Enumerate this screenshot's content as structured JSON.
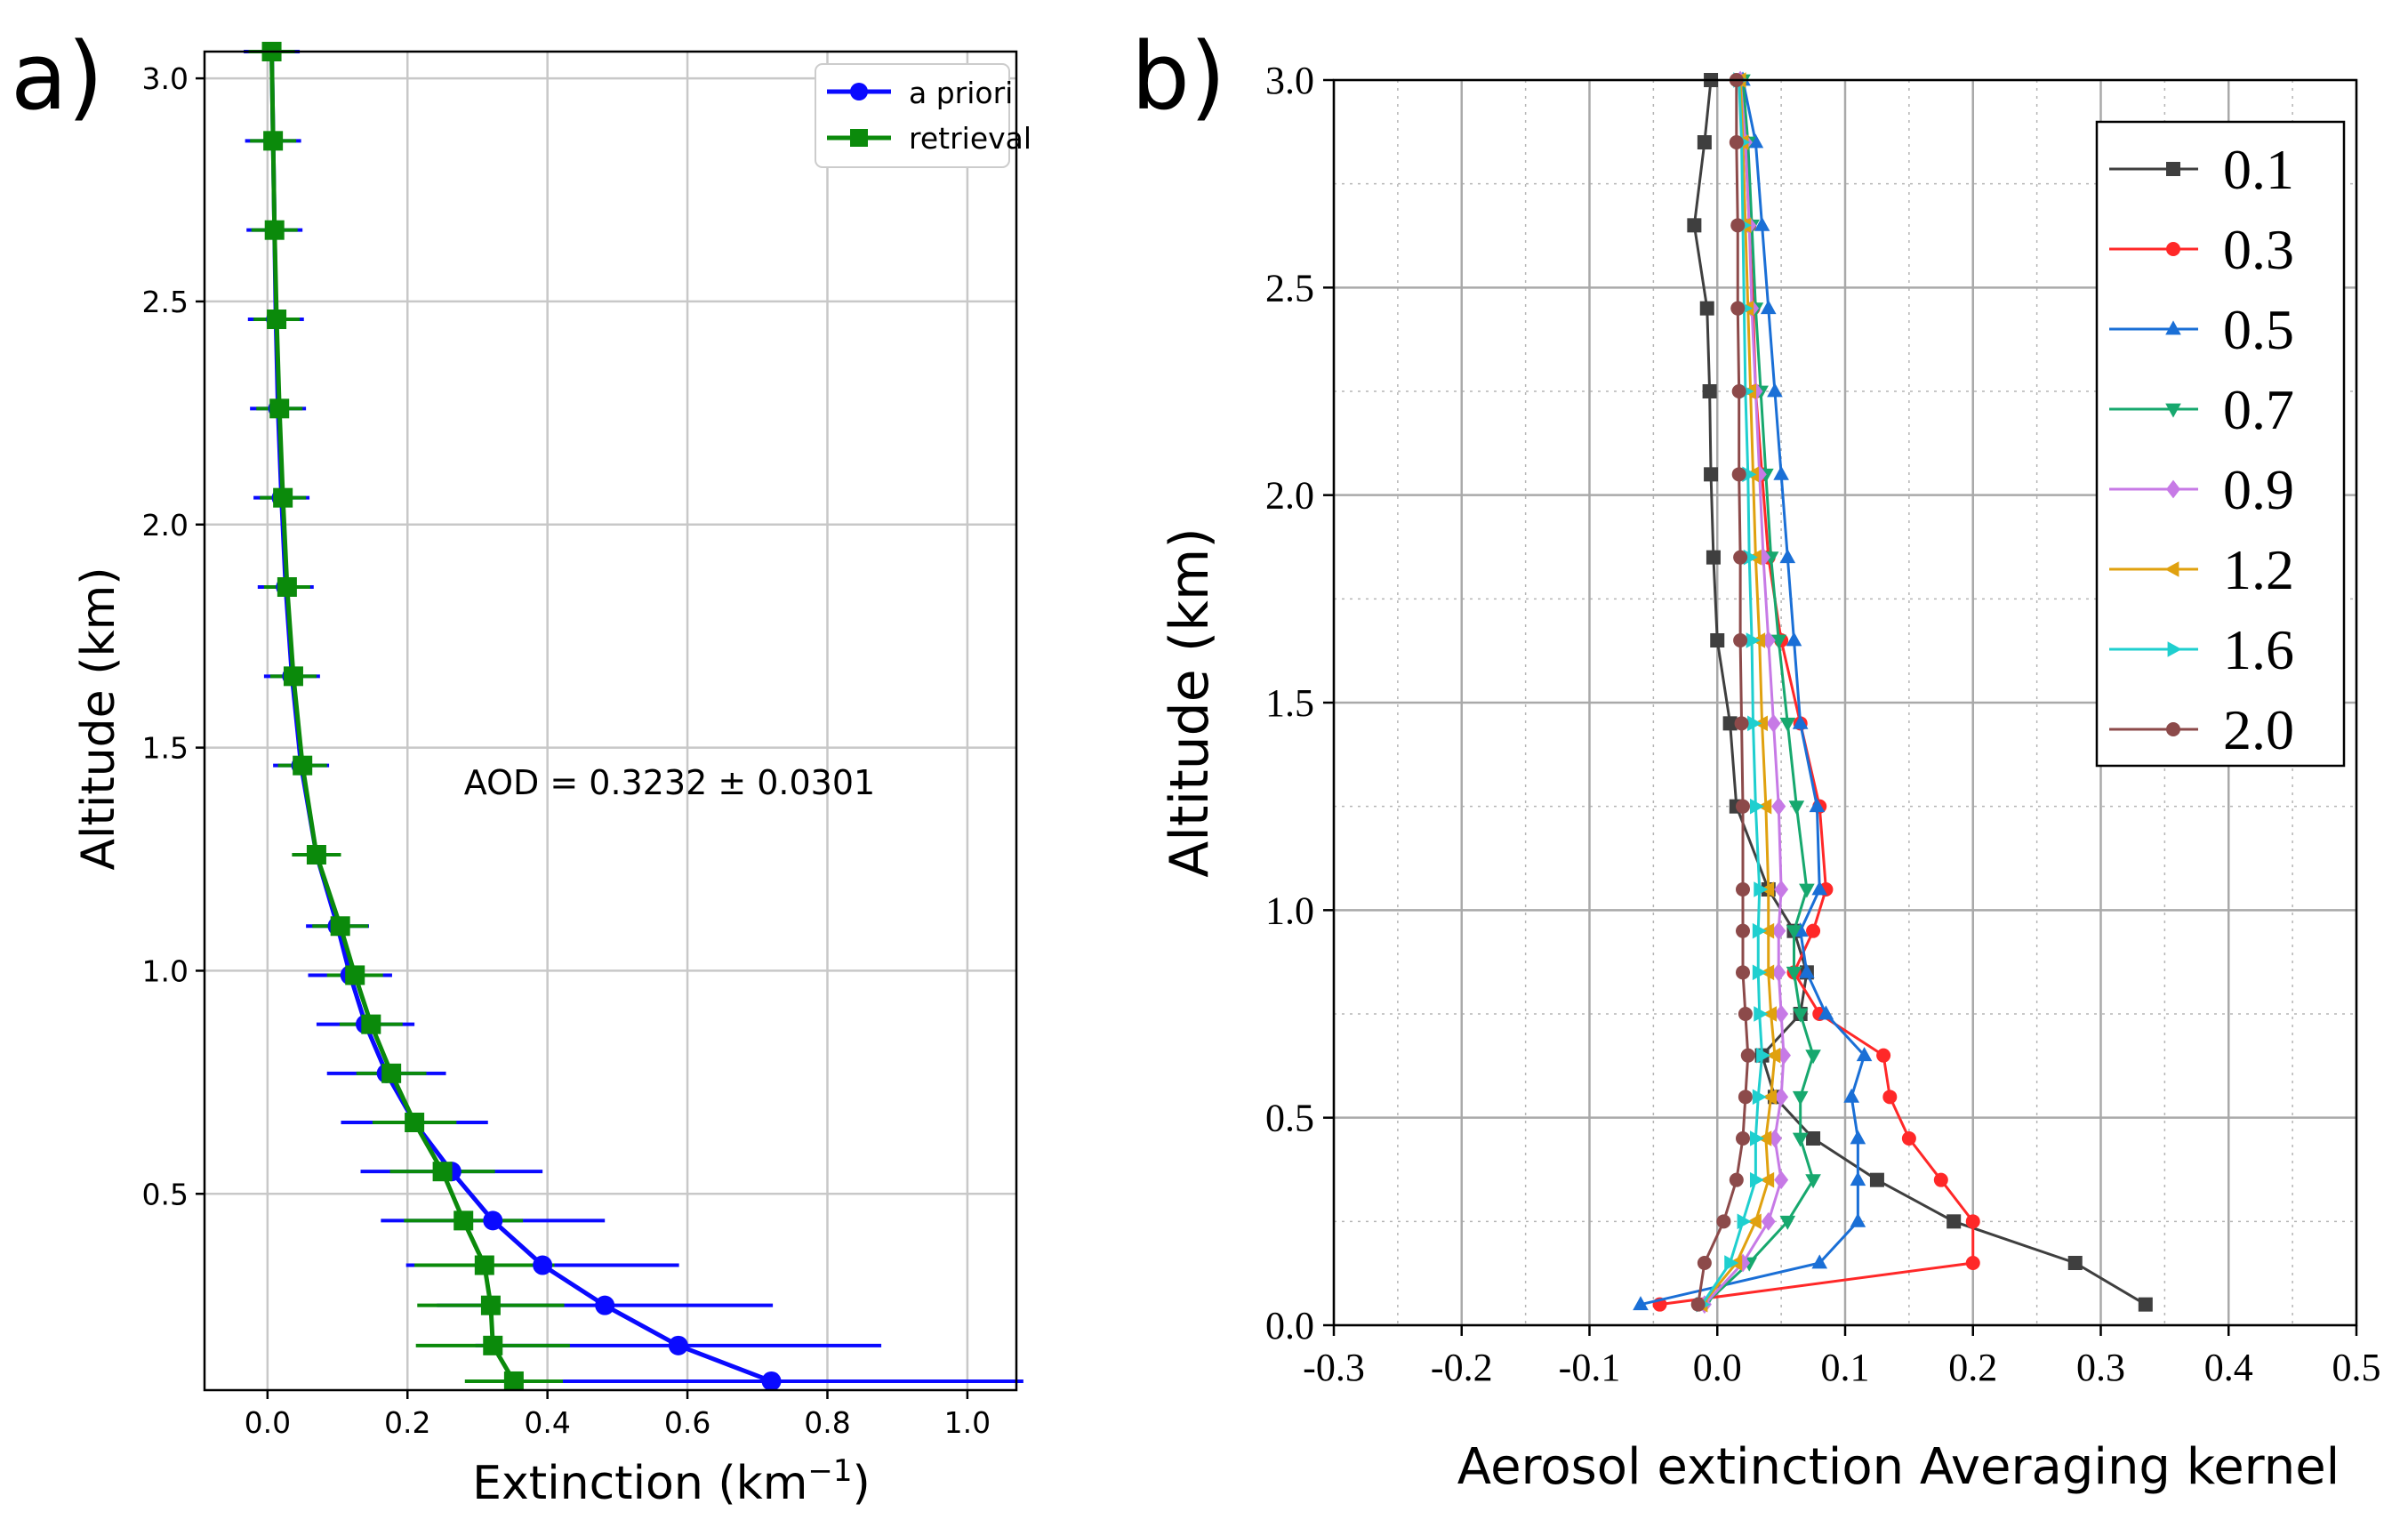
{
  "chart_data": [
    {
      "type": "line",
      "panel_label": "a)",
      "xlabel": "Extinction",
      "xlabel_unit": "(km",
      "xlabel_sup": "−1",
      "xlabel_close": ")",
      "ylabel": "Altitude (km)",
      "xlim": [
        -0.09,
        1.07
      ],
      "ylim": [
        0.06,
        3.06
      ],
      "x_ticks": [
        0.0,
        0.2,
        0.4,
        0.6,
        0.8,
        1.0
      ],
      "x_tick_labels": [
        "0.0",
        "0.2",
        "0.4",
        "0.6",
        "0.8",
        "1.0"
      ],
      "y_ticks": [
        0.5,
        1.0,
        1.5,
        2.0,
        2.5,
        3.0
      ],
      "y_tick_labels": [
        "0.5",
        "1.0",
        "1.5",
        "2.0",
        "2.5",
        "3.0"
      ],
      "grid": true,
      "legend_position": "top-right",
      "annotation": "AOD = 0.3232 ± 0.0301",
      "altitudes": [
        0.08,
        0.16,
        0.25,
        0.34,
        0.44,
        0.55,
        0.66,
        0.77,
        0.88,
        0.99,
        1.1,
        1.26,
        1.46,
        1.66,
        1.86,
        2.06,
        2.26,
        2.46,
        2.66,
        2.86,
        3.06
      ],
      "series": [
        {
          "name": "a priori",
          "color": "#0a0aff",
          "marker": "circle",
          "values": [
            0.72,
            0.587,
            0.482,
            0.393,
            0.322,
            0.263,
            0.21,
            0.17,
            0.14,
            0.118,
            0.1,
            0.07,
            0.048,
            0.035,
            0.026,
            0.02,
            0.015,
            0.012,
            0.01,
            0.008,
            0.006
          ],
          "errors": [
            0.36,
            0.29,
            0.24,
            0.195,
            0.16,
            0.13,
            0.105,
            0.085,
            0.07,
            0.06,
            0.045,
            0.032,
            0.04,
            0.04,
            0.04,
            0.04,
            0.04,
            0.04,
            0.04,
            0.04,
            0.04
          ]
        },
        {
          "name": "retrieval",
          "color": "#0b8a0b",
          "marker": "square",
          "values": [
            0.352,
            0.322,
            0.319,
            0.31,
            0.28,
            0.25,
            0.21,
            0.177,
            0.148,
            0.125,
            0.104,
            0.07,
            0.05,
            0.037,
            0.028,
            0.022,
            0.017,
            0.013,
            0.01,
            0.008,
            0.006
          ],
          "errors": [
            0.07,
            0.11,
            0.105,
            0.1,
            0.085,
            0.075,
            0.06,
            0.05,
            0.045,
            0.04,
            0.04,
            0.035,
            0.035,
            0.033,
            0.033,
            0.033,
            0.033,
            0.033,
            0.033,
            0.033,
            0.033
          ]
        }
      ]
    },
    {
      "type": "line",
      "panel_label": "b)",
      "xlabel": "Aerosol extinction Averaging kernel",
      "ylabel": "Altitude (km)",
      "xlim": [
        -0.3,
        0.5
      ],
      "ylim": [
        0.0,
        3.0
      ],
      "x_ticks": [
        -0.3,
        -0.2,
        -0.1,
        0.0,
        0.1,
        0.2,
        0.3,
        0.4,
        0.5
      ],
      "x_tick_labels": [
        "-0.3",
        "-0.2",
        "-0.1",
        "0.0",
        "0.1",
        "0.2",
        "0.3",
        "0.4",
        "0.5"
      ],
      "y_ticks": [
        0.0,
        0.5,
        1.0,
        1.5,
        2.0,
        2.5,
        3.0
      ],
      "y_tick_labels": [
        "0.0",
        "0.5",
        "1.0",
        "1.5",
        "2.0",
        "2.5",
        "3.0"
      ],
      "grid": true,
      "legend_position": "top-right",
      "altitudes": [
        0.05,
        0.15,
        0.25,
        0.35,
        0.45,
        0.55,
        0.65,
        0.75,
        0.85,
        0.95,
        1.05,
        1.25,
        1.45,
        1.65,
        1.85,
        2.05,
        2.25,
        2.45,
        2.65,
        2.85,
        3.0
      ],
      "series": [
        {
          "name": "0.1",
          "color": "#3f3f3f",
          "marker": "square",
          "values": [
            0.335,
            0.28,
            0.185,
            0.125,
            0.075,
            0.045,
            0.035,
            0.065,
            0.07,
            0.06,
            0.04,
            0.015,
            0.01,
            0.0,
            -0.003,
            -0.005,
            -0.006,
            -0.008,
            -0.018,
            -0.01,
            -0.005
          ]
        },
        {
          "name": "0.3",
          "color": "#ff2828",
          "marker": "circle",
          "values": [
            -0.045,
            0.2,
            0.2,
            0.175,
            0.15,
            0.135,
            0.13,
            0.08,
            0.06,
            0.075,
            0.085,
            0.08,
            0.065,
            0.05,
            0.04,
            0.035,
            0.03,
            0.028,
            0.025,
            0.022,
            0.018
          ]
        },
        {
          "name": "0.5",
          "color": "#1a6fd6",
          "marker": "triangle-up",
          "values": [
            -0.06,
            0.08,
            0.11,
            0.11,
            0.11,
            0.105,
            0.115,
            0.085,
            0.07,
            0.065,
            0.08,
            0.078,
            0.065,
            0.06,
            0.055,
            0.05,
            0.045,
            0.04,
            0.035,
            0.03,
            0.02
          ]
        },
        {
          "name": "0.7",
          "color": "#17a86e",
          "marker": "triangle-down",
          "values": [
            -0.01,
            0.025,
            0.055,
            0.075,
            0.065,
            0.065,
            0.075,
            0.065,
            0.06,
            0.06,
            0.07,
            0.062,
            0.055,
            0.048,
            0.042,
            0.038,
            0.034,
            0.03,
            0.027,
            0.024,
            0.02
          ]
        },
        {
          "name": "0.9",
          "color": "#c77ae6",
          "marker": "diamond",
          "values": [
            -0.01,
            0.02,
            0.04,
            0.05,
            0.045,
            0.05,
            0.052,
            0.05,
            0.048,
            0.048,
            0.05,
            0.048,
            0.044,
            0.04,
            0.036,
            0.033,
            0.03,
            0.027,
            0.025,
            0.022,
            0.018
          ]
        },
        {
          "name": "1.2",
          "color": "#e0a10f",
          "marker": "triangle-left",
          "values": [
            -0.012,
            0.015,
            0.03,
            0.04,
            0.038,
            0.042,
            0.045,
            0.042,
            0.04,
            0.04,
            0.04,
            0.038,
            0.035,
            0.033,
            0.03,
            0.028,
            0.026,
            0.024,
            0.022,
            0.02,
            0.018
          ]
        },
        {
          "name": "1.6",
          "color": "#1fcfcf",
          "marker": "triangle-right",
          "values": [
            -0.012,
            0.01,
            0.02,
            0.03,
            0.03,
            0.032,
            0.035,
            0.033,
            0.032,
            0.032,
            0.033,
            0.03,
            0.028,
            0.027,
            0.025,
            0.024,
            0.022,
            0.021,
            0.02,
            0.019,
            0.017
          ]
        },
        {
          "name": "2.0",
          "color": "#8c4a4a",
          "marker": "circle",
          "values": [
            -0.015,
            -0.01,
            0.005,
            0.015,
            0.02,
            0.022,
            0.024,
            0.022,
            0.02,
            0.02,
            0.02,
            0.02,
            0.019,
            0.018,
            0.018,
            0.017,
            0.017,
            0.016,
            0.016,
            0.015,
            0.015
          ]
        }
      ]
    }
  ]
}
